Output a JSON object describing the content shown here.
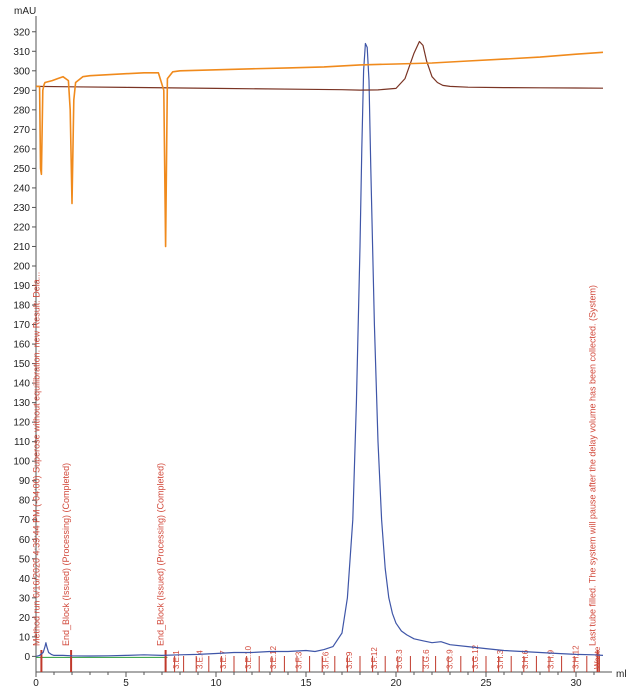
{
  "chart_data": {
    "type": "line",
    "y_unit": "mAU",
    "x_unit": "ml",
    "xlim": [
      0,
      32
    ],
    "ylim": [
      -8,
      325
    ],
    "x_ticks": [
      0,
      5,
      10,
      15,
      20,
      25,
      30
    ],
    "y_ticks": [
      0,
      10,
      20,
      30,
      40,
      50,
      60,
      70,
      80,
      90,
      100,
      110,
      120,
      130,
      140,
      150,
      160,
      170,
      180,
      190,
      200,
      210,
      220,
      230,
      240,
      250,
      260,
      270,
      280,
      290,
      300,
      310,
      320
    ],
    "colors": {
      "uv": "#3f56a8",
      "orange": "#f08a1c",
      "brown": "#7a3424",
      "events": "#c0392b",
      "fraction_text": "#d24a3c",
      "baseline_green": "#2a9d3a"
    },
    "series": [
      {
        "color_key": "uv",
        "x": [
          0,
          0.2,
          0.4,
          0.5,
          0.55,
          0.6,
          0.7,
          0.85,
          1.0,
          1.5,
          2.0,
          3,
          4,
          5,
          6,
          7,
          8,
          9,
          10,
          11,
          12,
          13,
          14,
          15,
          15.5,
          16,
          16.5,
          17.0,
          17.3,
          17.6,
          17.8,
          18.0,
          18.1,
          18.2,
          18.3,
          18.4,
          18.5,
          18.6,
          18.8,
          19.0,
          19.2,
          19.4,
          19.6,
          19.8,
          20.0,
          20.3,
          20.6,
          21.0,
          21.5,
          22,
          22.5,
          23,
          24,
          25,
          26,
          27,
          28,
          29,
          30,
          31,
          31.5
        ],
        "values": [
          0,
          0.5,
          2,
          5,
          7,
          5,
          2,
          1,
          0.5,
          0.5,
          0.3,
          0.2,
          0.3,
          0.5,
          0.8,
          0.5,
          0.8,
          1,
          1.5,
          2,
          2,
          2.5,
          2.5,
          3,
          2.5,
          3.5,
          5,
          12,
          30,
          70,
          130,
          210,
          260,
          300,
          314,
          312,
          295,
          250,
          170,
          110,
          70,
          45,
          30,
          22,
          17,
          13,
          11,
          9,
          8,
          7,
          7.5,
          6,
          5,
          4,
          3,
          2.5,
          2,
          1.5,
          1,
          0.8,
          0.5
        ]
      },
      {
        "color_key": "brown",
        "x": [
          0,
          2,
          5,
          10,
          15,
          17,
          18,
          19,
          20,
          20.5,
          21.0,
          21.3,
          21.5,
          21.7,
          22.0,
          22.3,
          22.6,
          23,
          24,
          26,
          28,
          30,
          31.5
        ],
        "values": [
          292,
          291.8,
          291.5,
          291,
          290.5,
          290.3,
          290.1,
          290.2,
          291,
          296,
          309,
          315,
          313,
          305,
          297,
          294,
          292.5,
          292,
          291.6,
          291.4,
          291.3,
          291.2,
          291.1
        ]
      },
      {
        "color_key": "orange",
        "x": [
          0,
          0.2,
          0.25,
          0.3,
          0.38,
          0.45,
          0.5,
          0.9,
          1.2,
          1.5,
          1.8,
          1.9,
          2.0,
          2.1,
          2.2,
          2.6,
          3,
          4,
          5,
          6,
          6.8,
          7.1,
          7.2,
          7.3,
          7.6,
          8,
          10,
          12,
          14,
          16,
          18,
          20,
          22,
          24,
          26,
          28,
          30,
          31.5
        ],
        "values": [
          292,
          292,
          250,
          247,
          290,
          293,
          294,
          295,
          296,
          297,
          295,
          280,
          232,
          285,
          294,
          297,
          297.5,
          298,
          298.5,
          299,
          299,
          290,
          210,
          296,
          299.5,
          300,
          300.5,
          301,
          301.5,
          302,
          303,
          303.5,
          304,
          305,
          306,
          307,
          308.5,
          309.5
        ]
      }
    ],
    "events": [
      {
        "x": 0.3,
        "label": "Method run 6/16/2020 4:39:44 PM (-04:00) Superose without equilibration. new Result: Dela...",
        "label_id": "method-run-event"
      },
      {
        "x": 1.95,
        "label": "End_Block (Issued) (Processing) (Completed)",
        "label_id": "end-block-1"
      },
      {
        "x": 7.2,
        "label": "End_Block (Issued) (Processing) (Completed)",
        "label_id": "end-block-2"
      },
      {
        "x": 31.2,
        "label": "Last tube filled. The system will pause after the delay volume has been collected. (System)",
        "label_id": "last-tube-event"
      }
    ],
    "fractions": {
      "boundaries": [
        7.7,
        8.2,
        8.9,
        9.6,
        10.3,
        11.0,
        11.7,
        12.4,
        13.1,
        13.8,
        14.5,
        15.2,
        15.9,
        16.6,
        17.3,
        18.0,
        18.7,
        19.4,
        20.1,
        20.8,
        21.5,
        22.2,
        22.9,
        23.6,
        24.3,
        25.0,
        25.7,
        26.4,
        27.1,
        27.8,
        28.5,
        29.2,
        29.9,
        30.6,
        31.3
      ],
      "labels": [
        "3.E.1",
        "3.E.4",
        "3.E.7",
        "3.E.10",
        "3.E.12",
        "3.F.3",
        "3.F.6",
        "3.F.9",
        "3.F.12",
        "3.G.3",
        "3.G.6",
        "3.G.9",
        "3.G.12",
        "3.H.3",
        "3.H.6",
        "3.H.9",
        "3.H.12",
        "Waste"
      ],
      "label_positions": [
        8.0,
        9.3,
        10.6,
        12.0,
        13.4,
        14.8,
        16.3,
        17.6,
        19.0,
        20.4,
        21.9,
        23.2,
        24.6,
        26.0,
        27.4,
        28.8,
        30.2,
        31.4
      ]
    }
  }
}
